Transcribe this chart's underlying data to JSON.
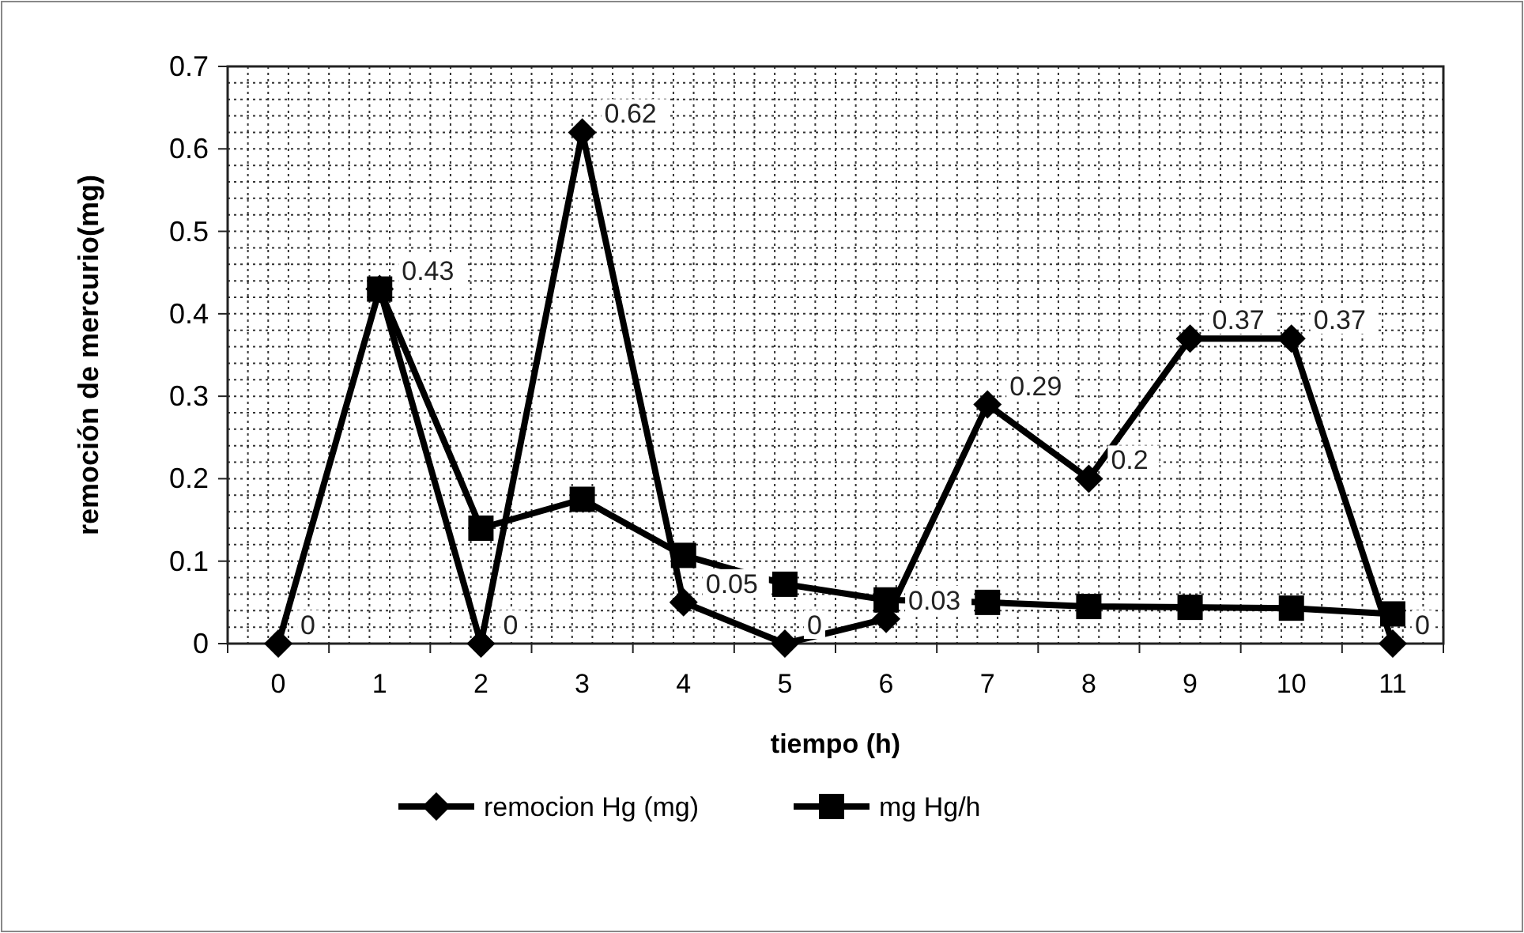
{
  "chart_data": {
    "type": "line",
    "xlabel": "tiempo (h)",
    "ylabel": "remoción de mercurio(mg)",
    "categories": [
      "0",
      "1",
      "2",
      "3",
      "4",
      "5",
      "6",
      "7",
      "8",
      "9",
      "10",
      "11"
    ],
    "ylim": [
      0,
      0.7
    ],
    "yticks": [
      0,
      0.1,
      0.2,
      0.3,
      0.4,
      0.5,
      0.6,
      0.7
    ],
    "grid": true,
    "legend": "bottom",
    "series": [
      {
        "name": "remocion Hg (mg)",
        "color": "#000000",
        "marker": "diamond",
        "values": [
          0,
          0.43,
          0,
          0.62,
          0.05,
          0,
          0.03,
          0.29,
          0.2,
          0.37,
          0.37,
          0
        ],
        "value_labels": [
          "0",
          "0.43",
          "0",
          "0.62",
          "0.05",
          "0",
          "0.03",
          "0.29",
          "0.2",
          "0.37",
          "0.37",
          "0"
        ]
      },
      {
        "name": "mg Hg/h",
        "color": "#000000",
        "marker": "square",
        "values": [
          null,
          0.43,
          0.14,
          0.175,
          0.107,
          0.072,
          0.053,
          0.05,
          0.045,
          0.044,
          0.043,
          0.036
        ]
      }
    ]
  }
}
